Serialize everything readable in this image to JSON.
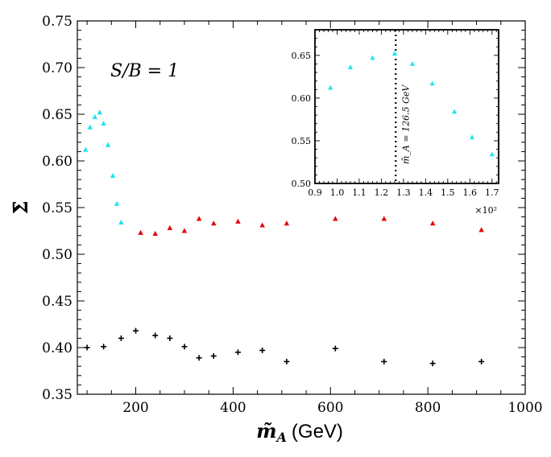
{
  "chart_data": [
    {
      "id": "main",
      "type": "scatter",
      "title": "",
      "xlabel_symbol": "m̃",
      "xlabel_sub": "A",
      "xlabel_unit": "(GeV)",
      "ylabel": "Σ̄",
      "annotation": "S/B = 1",
      "xlim": [
        80,
        1000
      ],
      "ylim": [
        0.35,
        0.75
      ],
      "xticks": [
        200,
        400,
        600,
        800,
        1000
      ],
      "yticks": [
        0.35,
        0.4,
        0.45,
        0.5,
        0.55,
        0.6,
        0.65,
        0.7,
        0.75
      ],
      "xtick_labels": [
        "200",
        "400",
        "600",
        "800",
        "1000"
      ],
      "ytick_labels": [
        "0.35",
        "0.40",
        "0.45",
        "0.50",
        "0.55",
        "0.60",
        "0.65",
        "0.70",
        "0.75"
      ],
      "series": [
        {
          "name": "cyan",
          "marker": "triangle",
          "color": "#1fe4f0",
          "x": [
            97,
            106,
            116,
            126,
            134,
            143,
            153,
            161,
            170
          ],
          "y": [
            0.612,
            0.636,
            0.647,
            0.652,
            0.64,
            0.617,
            0.584,
            0.554,
            0.534
          ]
        },
        {
          "name": "red",
          "marker": "triangle",
          "color": "#e8000b",
          "x": [
            210,
            240,
            270,
            300,
            330,
            360,
            410,
            460,
            510,
            610,
            710,
            810,
            910
          ],
          "y": [
            0.523,
            0.522,
            0.528,
            0.525,
            0.538,
            0.533,
            0.535,
            0.531,
            0.533,
            0.538,
            0.538,
            0.533,
            0.526
          ]
        },
        {
          "name": "black",
          "marker": "plus",
          "color": "#000000",
          "x": [
            100,
            134,
            170,
            200,
            240,
            270,
            300,
            330,
            360,
            410,
            460,
            510,
            610,
            710,
            810,
            910
          ],
          "y": [
            0.4,
            0.401,
            0.41,
            0.418,
            0.413,
            0.41,
            0.401,
            0.389,
            0.391,
            0.395,
            0.397,
            0.385,
            0.399,
            0.385,
            0.383,
            0.385
          ]
        }
      ]
    },
    {
      "id": "inset",
      "type": "scatter",
      "xlim": [
        90,
        173
      ],
      "ylim": [
        0.5,
        0.68
      ],
      "xticks": [
        90,
        100,
        110,
        120,
        130,
        140,
        150,
        160,
        170
      ],
      "xtick_labels": [
        "0.9",
        "1.0",
        "1.1",
        "1.2",
        "1.3",
        "1.4",
        "1.5",
        "1.6",
        "1.7"
      ],
      "yticks": [
        0.5,
        0.55,
        0.6,
        0.65
      ],
      "ytick_labels": [
        "0.50",
        "0.55",
        "0.60",
        "0.65"
      ],
      "x_multiplier": "×10²",
      "vline_x": 126.5,
      "vline_label": "m̃_A = 126.5 GeV",
      "series": [
        {
          "name": "cyan",
          "marker": "triangle",
          "color": "#1fe4f0",
          "x": [
            97,
            106,
            116,
            126,
            134,
            143,
            153,
            161,
            170
          ],
          "y": [
            0.612,
            0.636,
            0.647,
            0.652,
            0.64,
            0.617,
            0.584,
            0.554,
            0.534
          ]
        }
      ]
    }
  ]
}
